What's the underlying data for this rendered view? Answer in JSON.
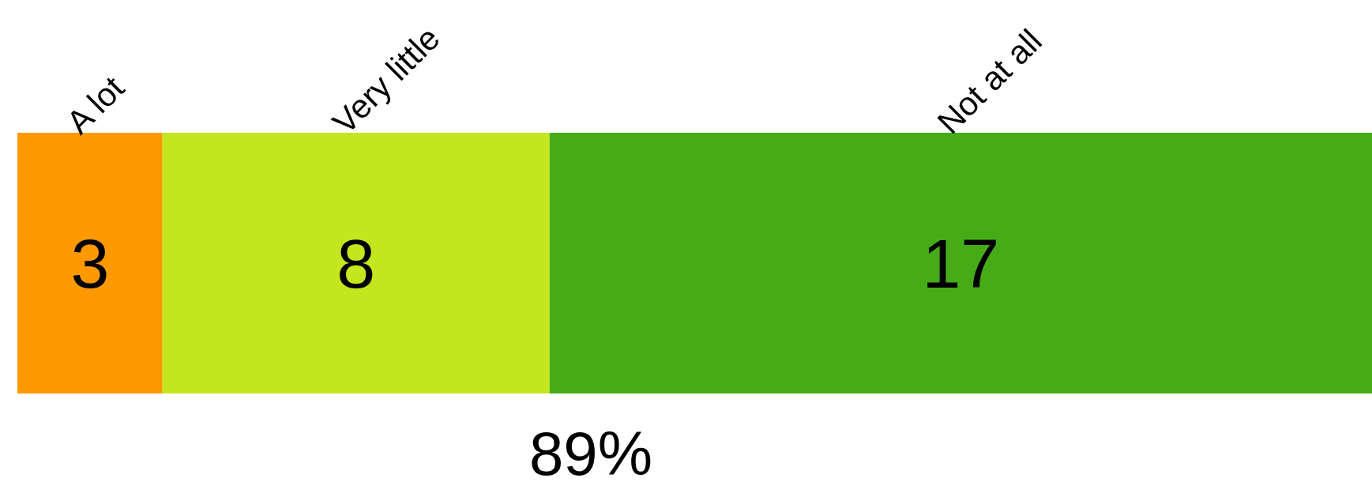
{
  "chart_data": {
    "type": "bar",
    "orientation": "horizontal",
    "stacked": true,
    "categories": [
      null
    ],
    "series": [
      {
        "name": "A lot",
        "color": "#fe9a00",
        "values": [
          3
        ]
      },
      {
        "name": "Very little",
        "color": "#c4e61e",
        "values": [
          8
        ]
      },
      {
        "name": "Not at all",
        "color": "#45ab17",
        "values": [
          17
        ]
      }
    ],
    "data_labels": true,
    "tick_labels": false,
    "annotations": [
      "89%"
    ]
  }
}
